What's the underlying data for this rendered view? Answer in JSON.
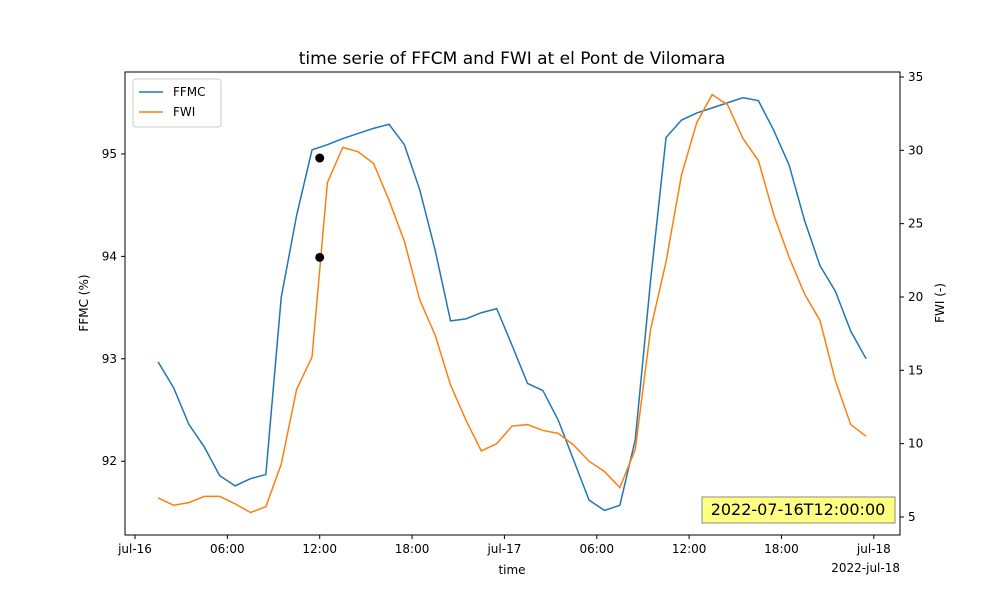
{
  "chart_data": {
    "type": "line",
    "title": "time serie of FFCM and FWI at el Pont de Vilomara",
    "xlabel": "time",
    "ylabel": "FFMC (%)",
    "y2label": "FWI (-)",
    "x": [
      1.5,
      2.5,
      3.5,
      4.5,
      5.5,
      6.5,
      7.5,
      8.5,
      9.5,
      10.5,
      11.5,
      12.5,
      13.5,
      14.5,
      15.5,
      16.5,
      17.5,
      18.5,
      19.5,
      20.5,
      21.5,
      22.5,
      23.5,
      24.5,
      25.5,
      26.5,
      27.5,
      28.5,
      29.5,
      30.5,
      31.5,
      32.5,
      33.5,
      34.5,
      35.5,
      36.5,
      37.5,
      38.5,
      39.5,
      40.5,
      41.5,
      42.5,
      43.5,
      44.5,
      45.5,
      46.5,
      47.5
    ],
    "series": [
      {
        "name": "FFMC",
        "color": "#1f77b4",
        "axis": "y",
        "values": [
          92.97,
          92.72,
          92.36,
          92.14,
          91.86,
          91.76,
          91.83,
          91.87,
          93.6,
          94.4,
          95.04,
          95.09,
          95.15,
          95.2,
          95.25,
          95.29,
          95.09,
          94.65,
          94.06,
          93.37,
          93.39,
          93.45,
          93.49,
          93.13,
          92.76,
          92.69,
          92.4,
          92.01,
          91.62,
          91.52,
          91.57,
          92.21,
          93.77,
          95.16,
          95.33,
          95.4,
          95.45,
          95.5,
          95.55,
          95.52,
          95.23,
          94.89,
          94.35,
          93.91,
          93.66,
          93.27,
          93.0
        ]
      },
      {
        "name": "FWI",
        "color": "#ff7f0e",
        "axis": "y2",
        "values": [
          6.3,
          5.8,
          5.98,
          6.4,
          6.4,
          5.9,
          5.3,
          5.7,
          8.6,
          13.7,
          15.9,
          27.8,
          30.2,
          29.9,
          29.1,
          26.6,
          23.8,
          19.8,
          17.4,
          14.0,
          11.6,
          9.5,
          10.0,
          11.2,
          11.3,
          10.9,
          10.7,
          9.9,
          8.8,
          8.1,
          7.0,
          9.6,
          17.8,
          22.4,
          28.3,
          31.9,
          33.8,
          33.1,
          30.8,
          29.3,
          25.6,
          22.7,
          20.2,
          18.4,
          14.3,
          11.3,
          10.5
        ]
      }
    ],
    "highlight": {
      "x": 12,
      "values": [
        94.96,
        22.7
      ],
      "color": "#000000"
    },
    "annotation": "2022-07-16T12:00:00",
    "xlim": [
      -0.65,
      49.7
    ],
    "xticks": [
      {
        "value": 0,
        "label": "jul-16"
      },
      {
        "value": 6,
        "label": "06:00"
      },
      {
        "value": 12,
        "label": "12:00"
      },
      {
        "value": 18,
        "label": "18:00"
      },
      {
        "value": 24,
        "label": "jul-17"
      },
      {
        "value": 30,
        "label": "06:00"
      },
      {
        "value": 36,
        "label": "12:00"
      },
      {
        "value": 42,
        "label": "18:00"
      },
      {
        "value": 48,
        "label": "jul-18"
      }
    ],
    "x_offset_label": "2022-jul-18",
    "ylim": [
      91.28,
      95.8
    ],
    "yticks": [
      92,
      93,
      94,
      95
    ],
    "y2lim": [
      3.77,
      35.34
    ],
    "y2ticks": [
      5,
      10,
      15,
      20,
      25,
      30,
      35
    ],
    "legend": "upper left"
  }
}
